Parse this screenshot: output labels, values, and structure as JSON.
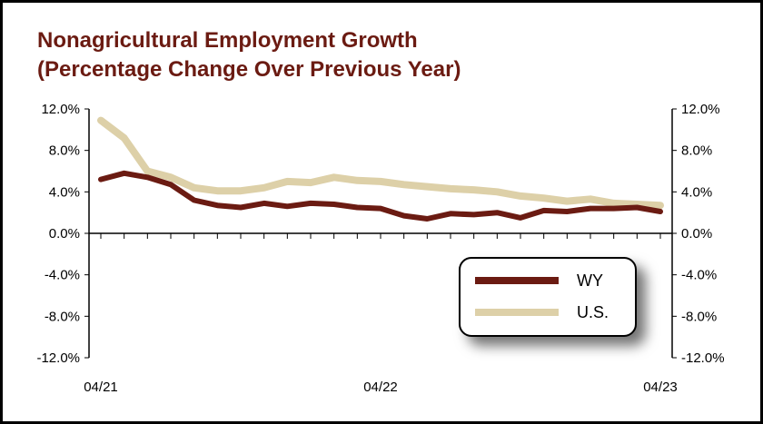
{
  "chart_data": {
    "type": "line",
    "title_line1": "Nonagricultural Employment Growth",
    "title_line2": "(Percentage Change Over Previous Year)",
    "ylim": [
      -12,
      12
    ],
    "y_ticks": [
      "12.0%",
      "8.0%",
      "4.0%",
      "0.0%",
      "-4.0%",
      "-8.0%",
      "-12.0%"
    ],
    "x_tick_labels": [
      "04/21",
      "04/22",
      "04/23"
    ],
    "x_tick_indices": [
      0,
      12,
      24
    ],
    "grid": false,
    "legend_placement": "bottom-right",
    "series": [
      {
        "name": "WY",
        "color": "#6b1b12",
        "values": [
          5.2,
          5.8,
          5.4,
          4.7,
          3.2,
          2.7,
          2.5,
          2.9,
          2.6,
          2.9,
          2.8,
          2.5,
          2.4,
          1.7,
          1.4,
          1.9,
          1.8,
          2.0,
          1.5,
          2.2,
          2.1,
          2.4,
          2.4,
          2.5,
          2.1
        ]
      },
      {
        "name": "U.S.",
        "color": "#ddd0a8",
        "values": [
          10.9,
          9.2,
          6.0,
          5.4,
          4.4,
          4.1,
          4.1,
          4.4,
          5.0,
          4.9,
          5.4,
          5.1,
          5.0,
          4.7,
          4.5,
          4.3,
          4.2,
          4.0,
          3.6,
          3.4,
          3.1,
          3.3,
          2.9,
          2.8,
          2.7
        ]
      }
    ]
  }
}
